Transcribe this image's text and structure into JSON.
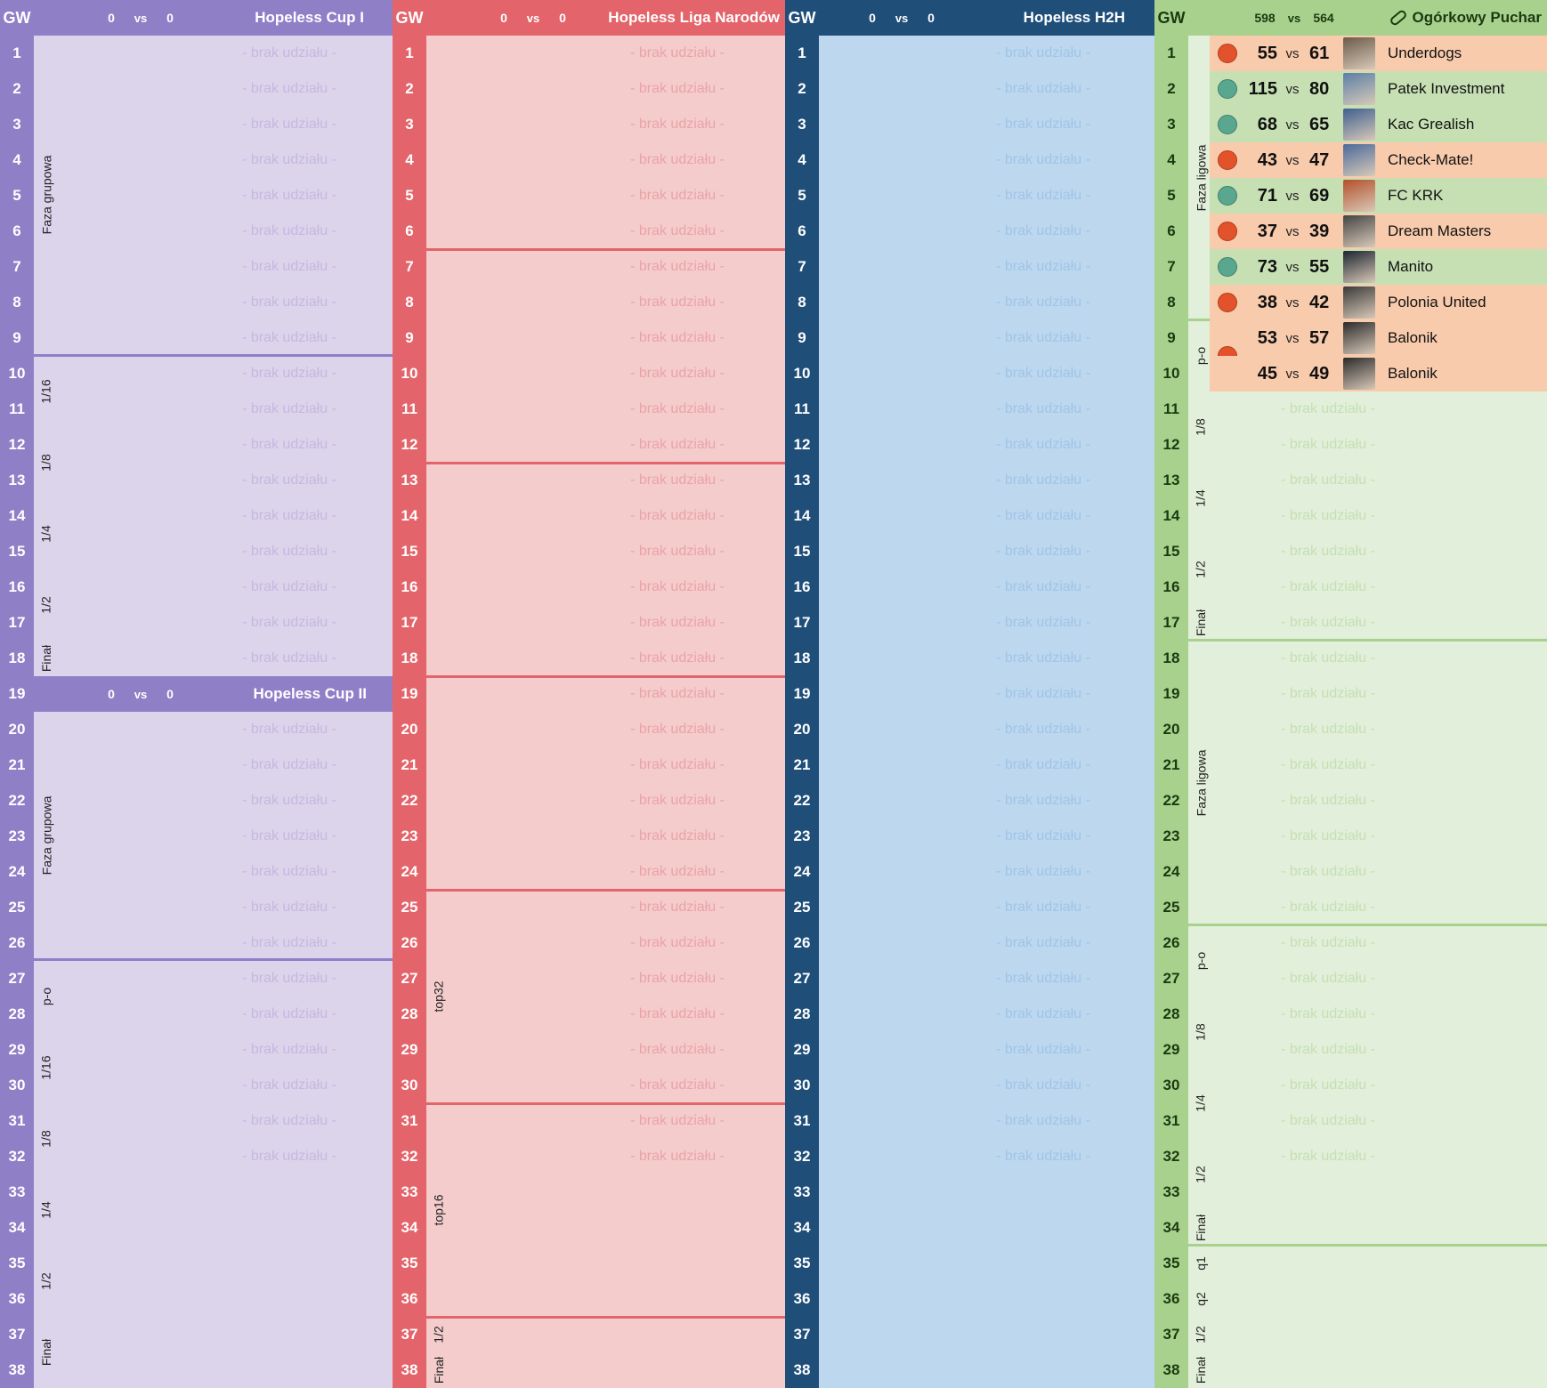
{
  "gw_label": "GW",
  "vs_label": "vs",
  "brak_label": "- brak udziału -",
  "colors": {
    "purple": "#8f7fc7",
    "purple_light": "#dcd4eb",
    "red": "#e3646a",
    "red_light": "#f4cccc",
    "blue": "#1f4e79",
    "blue_light": "#bdd7ee",
    "green": "#a9d18e",
    "green_light": "#e2efda",
    "win_row": "#c6e0b4",
    "loss_row": "#f8cbad",
    "win_dot": "#5aa78f",
    "loss_dot": "#e2522b"
  },
  "gameweeks": [
    "1",
    "2",
    "3",
    "4",
    "5",
    "6",
    "7",
    "8",
    "9",
    "10",
    "11",
    "12",
    "13",
    "14",
    "15",
    "16",
    "17",
    "18",
    "19",
    "20",
    "21",
    "22",
    "23",
    "24",
    "25",
    "26",
    "27",
    "28",
    "29",
    "30",
    "31",
    "32",
    "33",
    "34",
    "35",
    "36",
    "37",
    "38"
  ],
  "cup1": {
    "title": "Hopeless Cup I",
    "score_a": "0",
    "score_b": "0"
  },
  "cup2": {
    "title": "Hopeless Cup II",
    "score_a": "0",
    "score_b": "0"
  },
  "cup_phases_1": [
    "Faza grupowa",
    "1/16",
    "1/8",
    "1/4",
    "1/2",
    "Finał"
  ],
  "cup_phases_2": [
    "Faza grupowa",
    "p-o",
    "1/16",
    "1/8",
    "1/4",
    "1/2",
    "Finał"
  ],
  "liga": {
    "title": "Hopeless Liga Narodów",
    "score_a": "0",
    "score_b": "0",
    "phases": [
      "top32",
      "top16",
      "1/2",
      "Finał"
    ]
  },
  "h2h": {
    "title": "Hopeless H2H",
    "score_a": "0",
    "score_b": "0"
  },
  "ogorkowy": {
    "title": "Ogórkowy Puchar",
    "icon": "pickle-icon",
    "score_a": "598",
    "score_b": "564",
    "phases": [
      "Faza ligowa",
      "p-o",
      "1/8",
      "1/4",
      "1/2",
      "Finał",
      "Faza ligowa",
      "p-o",
      "1/8",
      "1/4",
      "1/2",
      "Finał",
      "q1",
      "q2",
      "1/2",
      "Finał"
    ],
    "matches": [
      {
        "gw": "1",
        "result": "loss",
        "score": "55",
        "opp_score": "61",
        "team": "Underdogs"
      },
      {
        "gw": "2",
        "result": "win",
        "score": "115",
        "opp_score": "80",
        "team": "Patek Investment"
      },
      {
        "gw": "3",
        "result": "win",
        "score": "68",
        "opp_score": "65",
        "team": "Kac Grealish"
      },
      {
        "gw": "4",
        "result": "loss",
        "score": "43",
        "opp_score": "47",
        "team": "Check-Mate!"
      },
      {
        "gw": "5",
        "result": "win",
        "score": "71",
        "opp_score": "69",
        "team": "FC KRK"
      },
      {
        "gw": "6",
        "result": "loss",
        "score": "37",
        "opp_score": "39",
        "team": "Dream Masters"
      },
      {
        "gw": "7",
        "result": "win",
        "score": "73",
        "opp_score": "55",
        "team": "Manito"
      },
      {
        "gw": "8",
        "result": "loss",
        "score": "38",
        "opp_score": "42",
        "team": "Polonia United"
      },
      {
        "gw": "9",
        "result": "loss",
        "score": "53",
        "opp_score": "57",
        "team": "Balonik"
      },
      {
        "gw": "10",
        "result": "loss",
        "score": "45",
        "opp_score": "49",
        "team": "Balonik"
      }
    ]
  }
}
